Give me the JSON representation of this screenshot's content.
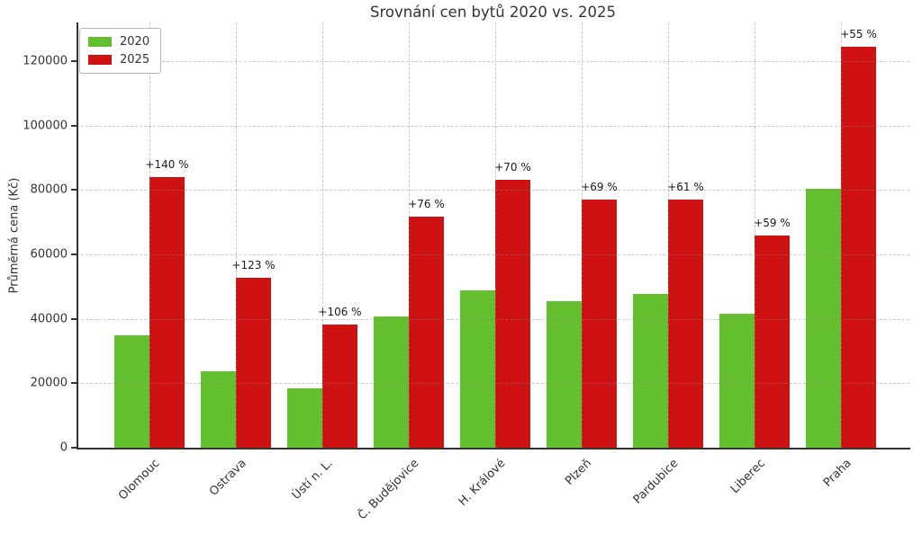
{
  "title": "Srovnání cen bytů 2020 vs. 2025",
  "ylabel": "Průměrná cena (Kč)",
  "legend": [
    {
      "label": "2020",
      "color": "#65c02f"
    },
    {
      "label": "2025",
      "color": "#d01111"
    }
  ],
  "colors": {
    "bar_2020": "#65c02f",
    "bar_2025": "#d01111",
    "axis": "#333333",
    "grid": "#828282"
  },
  "chart_data": {
    "type": "bar",
    "title": "Srovnání cen bytů 2020 vs. 2025",
    "xlabel": "",
    "ylabel": "Průměrná cena (Kč)",
    "categories": [
      "Olomouc",
      "Ostrava",
      "Ústí n. L.",
      "Č. Budějovice",
      "H. Králové",
      "Plzeň",
      "Pardubice",
      "Liberec",
      "Praha"
    ],
    "series": [
      {
        "name": "2020",
        "color": "#65c02f",
        "values": [
          35000,
          23700,
          18500,
          40700,
          48900,
          45600,
          47700,
          41500,
          80300
        ]
      },
      {
        "name": "2025",
        "color": "#d01111",
        "values": [
          84000,
          52800,
          38100,
          71600,
          83100,
          77000,
          76900,
          66000,
          124500
        ]
      }
    ],
    "annotations": [
      "+140 %",
      "+123 %",
      "+106 %",
      "+76 %",
      "+70 %",
      "+69 %",
      "+61 %",
      "+59 %",
      "+55 %"
    ],
    "ytick_labels": [
      "0",
      "20000",
      "40000",
      "60000",
      "80000",
      "100000",
      "120000"
    ],
    "yticks": [
      0,
      20000,
      40000,
      60000,
      80000,
      100000,
      120000
    ],
    "ylim": [
      0,
      132000
    ],
    "grid": true,
    "grid_style": "dashed",
    "legend_position": "upper left"
  }
}
